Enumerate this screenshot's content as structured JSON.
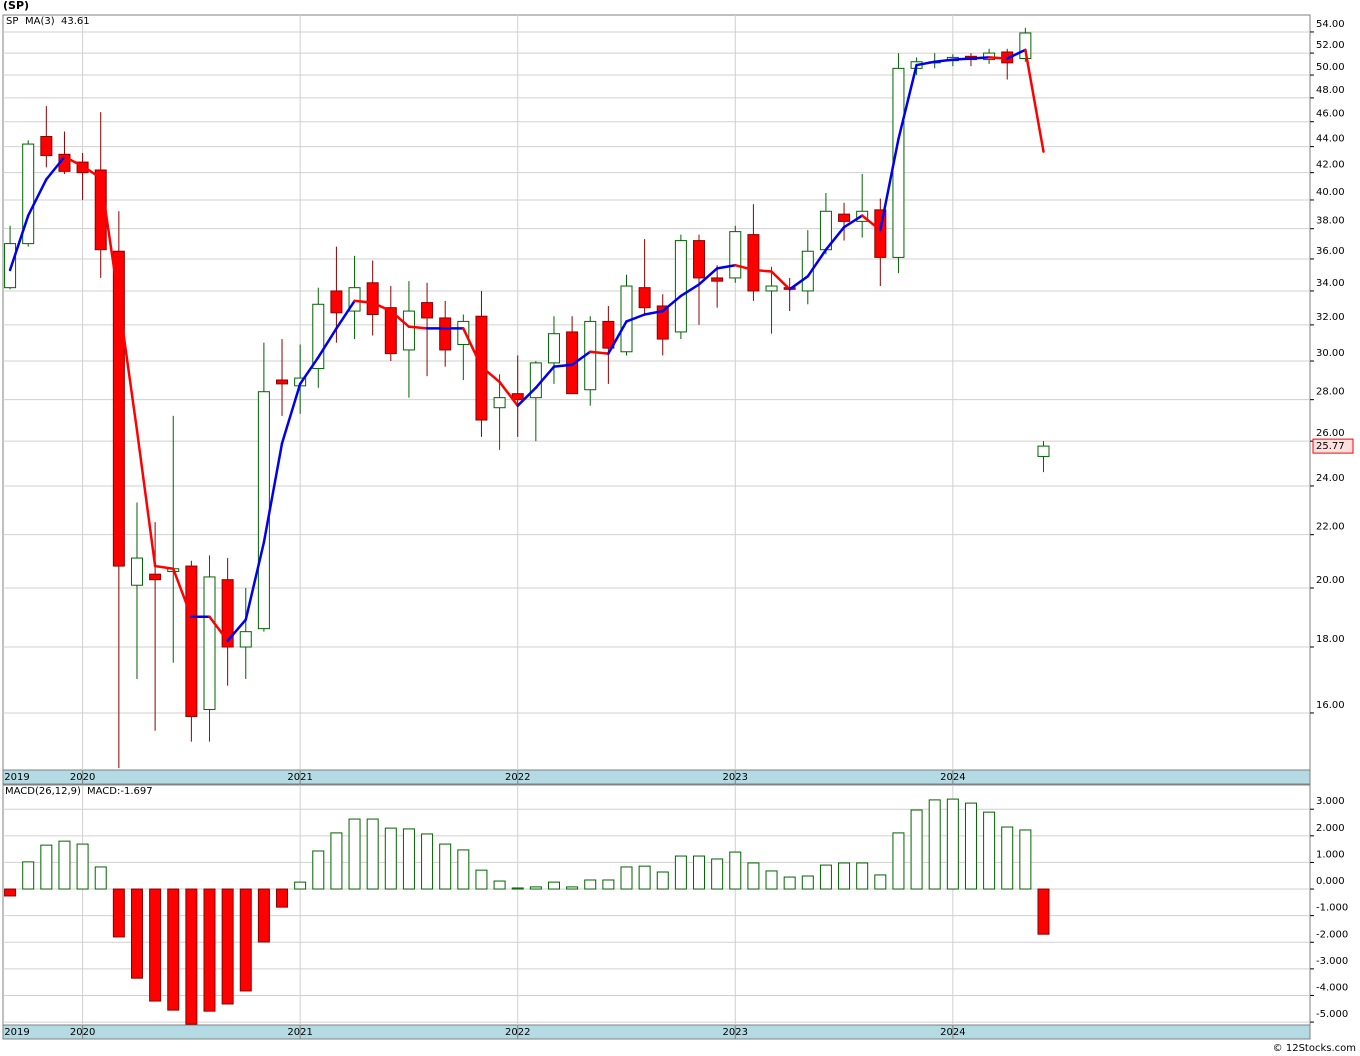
{
  "chart_data": [
    {
      "type": "candlestick",
      "title": "(SP)",
      "categories": [
        null,
        null,
        null,
        null,
        null,
        null,
        null,
        null,
        null,
        null,
        null,
        null,
        null,
        null,
        null,
        null,
        null,
        null,
        null,
        null,
        null,
        null,
        null,
        null,
        null,
        null,
        null,
        null,
        null,
        null,
        null,
        null,
        null,
        null,
        null,
        null,
        null,
        null,
        null,
        null,
        null,
        null,
        null,
        null,
        null,
        null,
        null,
        null,
        null,
        null,
        null,
        null,
        null,
        null,
        null,
        null,
        null,
        null
      ],
      "series": [
        {
          "name": "SP",
          "up_color": "#006400",
          "down_color": "#ff0000",
          "open": [
            34.2,
            37.0,
            44.8,
            43.4,
            42.8,
            42.2,
            36.5,
            20.1,
            20.5,
            20.6,
            20.8,
            16.1,
            20.3,
            18.0,
            18.6,
            29.0,
            28.7,
            29.6,
            34.0,
            32.8,
            34.5,
            33.0,
            30.6,
            33.3,
            32.4,
            30.9,
            32.5,
            27.6,
            28.3,
            28.1,
            29.9,
            31.6,
            28.5,
            32.2,
            30.5,
            34.2,
            33.1,
            31.6,
            37.2,
            34.8,
            34.8,
            37.6,
            34.0,
            34.2,
            34.0,
            36.6,
            39.0,
            38.5,
            39.3,
            36.1,
            50.6,
            51.1,
            51.3,
            51.7,
            51.4,
            52.1,
            51.5,
            25.3
          ],
          "high": [
            38.2,
            44.5,
            47.3,
            45.2,
            43.5,
            46.8,
            39.2,
            23.3,
            22.5,
            27.2,
            21.0,
            21.2,
            21.1,
            20.0,
            31.0,
            31.2,
            30.9,
            34.2,
            36.8,
            36.2,
            35.9,
            34.3,
            34.6,
            34.5,
            33.4,
            32.6,
            34.0,
            29.3,
            30.3,
            30.0,
            32.5,
            32.5,
            32.5,
            33.1,
            35.0,
            37.3,
            33.8,
            37.6,
            37.6,
            35.6,
            38.2,
            39.7,
            35.5,
            34.8,
            37.9,
            40.5,
            39.8,
            41.9,
            40.1,
            52.0,
            51.6,
            52.0,
            51.9,
            52.0,
            52.4,
            52.4,
            54.4,
            26.0
          ],
          "low": [
            34.1,
            36.8,
            42.4,
            41.9,
            40.0,
            34.8,
            14.5,
            17.0,
            15.5,
            17.5,
            15.2,
            15.2,
            16.8,
            17.0,
            18.5,
            27.2,
            27.3,
            28.6,
            31.0,
            31.2,
            31.4,
            30.0,
            28.1,
            29.2,
            29.7,
            29.0,
            26.2,
            25.6,
            26.2,
            26.0,
            28.8,
            28.3,
            27.7,
            28.8,
            30.3,
            32.6,
            30.3,
            31.2,
            32.0,
            33.0,
            34.5,
            33.4,
            31.5,
            32.8,
            33.2,
            36.3,
            37.2,
            37.4,
            34.3,
            35.1,
            50.0,
            50.6,
            50.8,
            50.8,
            51.0,
            49.6,
            51.2,
            24.6
          ],
          "close": [
            37.0,
            44.2,
            43.3,
            42.1,
            42.0,
            36.6,
            20.8,
            21.1,
            20.3,
            20.7,
            15.9,
            20.4,
            18.0,
            18.5,
            28.4,
            28.8,
            29.1,
            33.2,
            32.7,
            34.2,
            32.6,
            30.4,
            32.8,
            32.4,
            30.6,
            32.2,
            27.0,
            28.1,
            28.0,
            29.9,
            31.5,
            28.3,
            32.2,
            30.7,
            34.3,
            33.0,
            31.2,
            37.2,
            34.8,
            34.6,
            37.8,
            34.0,
            34.3,
            34.1,
            36.5,
            39.2,
            38.5,
            39.2,
            36.1,
            50.6,
            51.2,
            51.2,
            51.6,
            51.4,
            52.0,
            51.1,
            53.9,
            25.77
          ]
        },
        {
          "name": "MA(3)",
          "up_color": "#0000ee",
          "down_color": "#ff0000",
          "values": [
            35.3,
            38.9,
            41.5,
            43.2,
            42.5,
            41.6,
            33.4,
            26.5,
            20.8,
            20.7,
            19.0,
            19.0,
            18.2,
            18.9,
            21.7,
            25.9,
            28.8,
            30.2,
            31.8,
            33.4,
            33.3,
            32.8,
            31.9,
            31.8,
            31.8,
            31.8,
            29.7,
            28.9,
            27.7,
            28.6,
            29.7,
            29.8,
            30.5,
            30.4,
            32.2,
            32.6,
            32.8,
            33.7,
            34.4,
            35.4,
            35.6,
            35.3,
            35.2,
            34.1,
            34.9,
            36.6,
            38.1,
            38.9,
            37.9,
            44.6,
            50.9,
            51.2,
            51.4,
            51.5,
            51.6,
            51.5,
            52.3,
            43.61
          ]
        }
      ],
      "log": true,
      "ylim": [
        14.45,
        55.66
      ],
      "yticks": [
        {
          "value": 16,
          "label": "16.00"
        },
        {
          "value": 18,
          "label": "18.00"
        },
        {
          "value": 20,
          "label": "20.00"
        },
        {
          "value": 22,
          "label": "22.00"
        },
        {
          "value": 24,
          "label": "24.00"
        },
        {
          "value": 26,
          "label": "26.00"
        },
        {
          "value": 28,
          "label": "28.00"
        },
        {
          "value": 30,
          "label": "30.00"
        },
        {
          "value": 32,
          "label": "32.00"
        },
        {
          "value": 34,
          "label": "34.00"
        },
        {
          "value": 36,
          "label": "36.00"
        },
        {
          "value": 38,
          "label": "38.00"
        },
        {
          "value": 40,
          "label": "40.00"
        },
        {
          "value": 42,
          "label": "42.00"
        },
        {
          "value": 44,
          "label": "44.00"
        },
        {
          "value": 46,
          "label": "46.00"
        },
        {
          "value": 48,
          "label": "48.00"
        },
        {
          "value": 50,
          "label": "50.00"
        },
        {
          "value": 52,
          "label": "52.00"
        },
        {
          "value": 54,
          "label": "54.00"
        }
      ],
      "xlim": [
        -0.39,
        71.7
      ],
      "xticks": [
        {
          "value": -8,
          "label": "2019"
        },
        {
          "value": 4,
          "label": "2020"
        },
        {
          "value": 16,
          "label": "2021"
        },
        {
          "value": 28,
          "label": "2022"
        },
        {
          "value": 40,
          "label": "2023"
        },
        {
          "value": 52,
          "label": "2024"
        }
      ],
      "grid": true
    },
    {
      "type": "bar",
      "title": "MACD(26,12,9)",
      "subtitle": "MACD:-1.697",
      "categories": [
        null,
        null,
        null,
        null,
        null,
        null,
        null,
        null,
        null,
        null,
        null,
        null,
        null,
        null,
        null,
        null,
        null,
        null,
        null,
        null,
        null,
        null,
        null,
        null,
        null,
        null,
        null,
        null,
        null,
        null,
        null,
        null,
        null,
        null,
        null,
        null,
        null,
        null,
        null,
        null,
        null,
        null,
        null,
        null,
        null,
        null,
        null,
        null,
        null,
        null,
        null,
        null,
        null,
        null,
        null,
        null,
        null,
        null
      ],
      "values": [
        -0.26,
        1.02,
        1.65,
        1.8,
        1.69,
        0.83,
        -1.8,
        -3.35,
        -4.21,
        -4.55,
        -5.08,
        -4.59,
        -4.32,
        -3.83,
        -1.99,
        -0.68,
        0.26,
        1.43,
        2.11,
        2.63,
        2.63,
        2.29,
        2.26,
        2.07,
        1.69,
        1.47,
        0.71,
        0.3,
        0.04,
        0.08,
        0.26,
        0.08,
        0.34,
        0.34,
        0.83,
        0.86,
        0.64,
        1.24,
        1.24,
        1.13,
        1.39,
        0.98,
        0.68,
        0.45,
        0.49,
        0.9,
        0.98,
        0.98,
        0.53,
        2.11,
        2.97,
        3.35,
        3.38,
        3.23,
        2.89,
        2.33,
        2.22,
        -1.697
      ],
      "up_color": "#006400",
      "down_color": "#ff0000",
      "ylim": [
        -5.11,
        3.91
      ],
      "yticks": [
        {
          "value": -5,
          "label": "-5.000"
        },
        {
          "value": -4,
          "label": "-4.000"
        },
        {
          "value": -3,
          "label": "-3.000"
        },
        {
          "value": -2,
          "label": "-2.000"
        },
        {
          "value": -1,
          "label": "-1.000"
        },
        {
          "value": 0,
          "label": "0.000"
        },
        {
          "value": 1,
          "label": "1.000"
        },
        {
          "value": 2,
          "label": "2.000"
        },
        {
          "value": 3,
          "label": "3.000"
        }
      ],
      "xlim": [
        -0.39,
        71.7
      ],
      "xticks": [
        {
          "value": -8,
          "label": "2019"
        },
        {
          "value": 4,
          "label": "2020"
        },
        {
          "value": 16,
          "label": "2021"
        },
        {
          "value": 28,
          "label": "2022"
        },
        {
          "value": 40,
          "label": "2023"
        },
        {
          "value": 52,
          "label": "2024"
        }
      ],
      "grid": true
    }
  ],
  "footer": "© 12Stocks.com"
}
